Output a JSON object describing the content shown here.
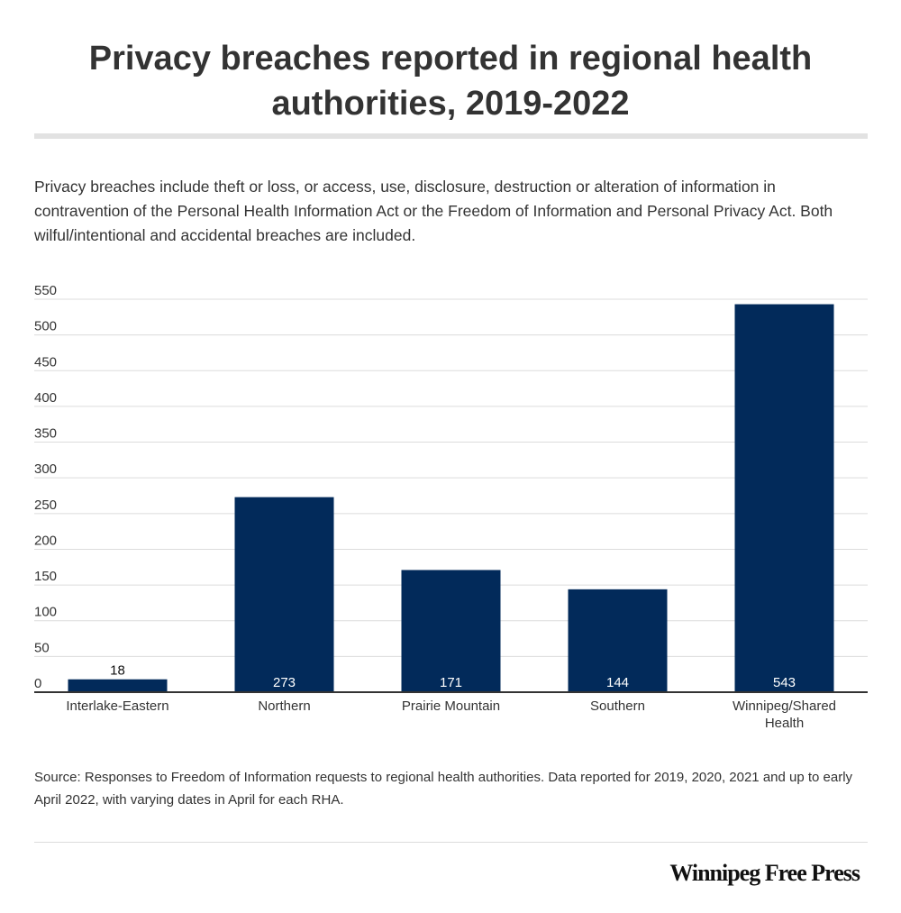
{
  "header": {
    "title": "Privacy breaches reported in regional health authorities, 2019-2022",
    "description": "Privacy breaches include theft or loss, or access, use, disclosure, destruction or alteration of information in contravention of the Personal Health Information Act or the Freedom of Information and Personal Privacy Act. Both wilful/intentional and accidental breaches are included."
  },
  "chart_data": {
    "type": "bar",
    "title": "Privacy breaches reported in regional health authorities, 2019-2022",
    "xlabel": "",
    "ylabel": "",
    "categories": [
      "Interlake-Eastern",
      "Northern",
      "Prairie Mountain",
      "Southern",
      "Winnipeg/Shared Health"
    ],
    "values": [
      18,
      273,
      171,
      144,
      543
    ],
    "ylim": [
      0,
      550
    ],
    "yticks": [
      0,
      50,
      100,
      150,
      200,
      250,
      300,
      350,
      400,
      450,
      500,
      550
    ],
    "grid": true,
    "bar_color": "#022a5a"
  },
  "footer": {
    "source": "Source: Responses to Freedom of Information requests to regional health authorities.  Data reported for 2019, 2020, 2021 and up to early April 2022, with varying dates in April for each RHA.",
    "logo": "Winnipeg Free Press"
  }
}
